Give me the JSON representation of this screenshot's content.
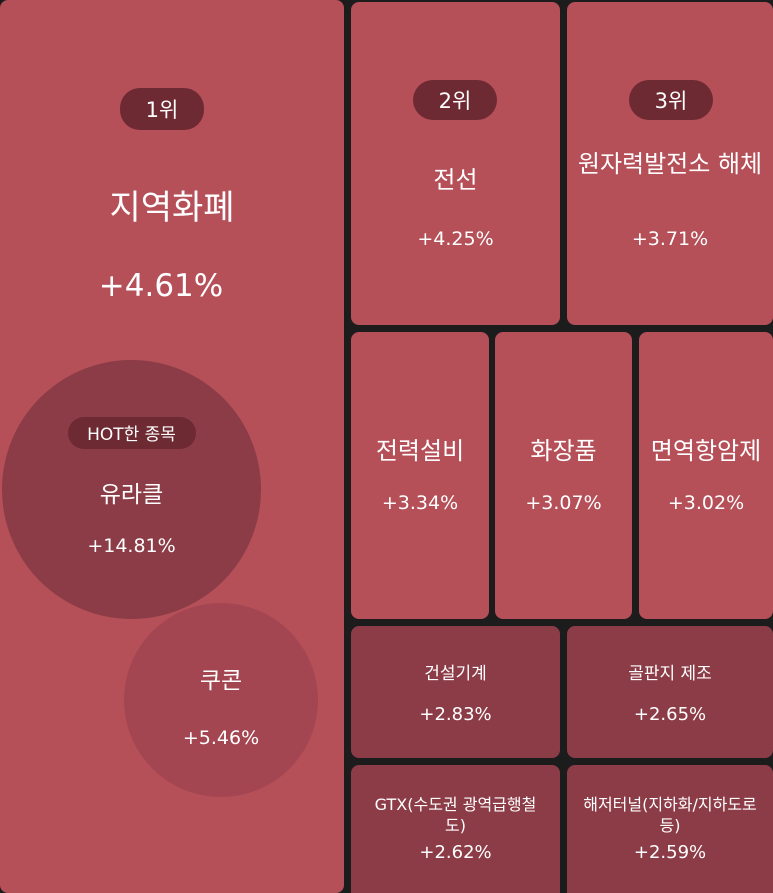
{
  "main": {
    "rank": "1위",
    "name": "지역화폐",
    "pct": "+4.61%"
  },
  "hot": {
    "badge": "HOT한 종목",
    "name": "유라클",
    "pct": "+14.81%"
  },
  "stock2": {
    "name": "쿠콘",
    "pct": "+5.46%"
  },
  "themes": [
    {
      "rank": "2위",
      "name": "전선",
      "pct": "+4.25%"
    },
    {
      "rank": "3위",
      "name": "원자력발전소 해체",
      "pct": "+3.71%"
    },
    {
      "name": "전력설비",
      "pct": "+3.34%"
    },
    {
      "name": "화장품",
      "pct": "+3.07%"
    },
    {
      "name": "면역항암제",
      "pct": "+3.02%"
    },
    {
      "name": "건설기계",
      "pct": "+2.83%"
    },
    {
      "name": "골판지 제조",
      "pct": "+2.65%"
    },
    {
      "name": "GTX(수도권 광역급행철도)",
      "pct": "+2.62%"
    },
    {
      "name": "해저터널(지하화/지하도로 등)",
      "pct": "+2.59%"
    }
  ],
  "colors": {
    "tile_primary": "#b54f58",
    "tile_secondary": "#8c3c47",
    "badge": "#6e2a33",
    "background": "#1c1c1c"
  }
}
